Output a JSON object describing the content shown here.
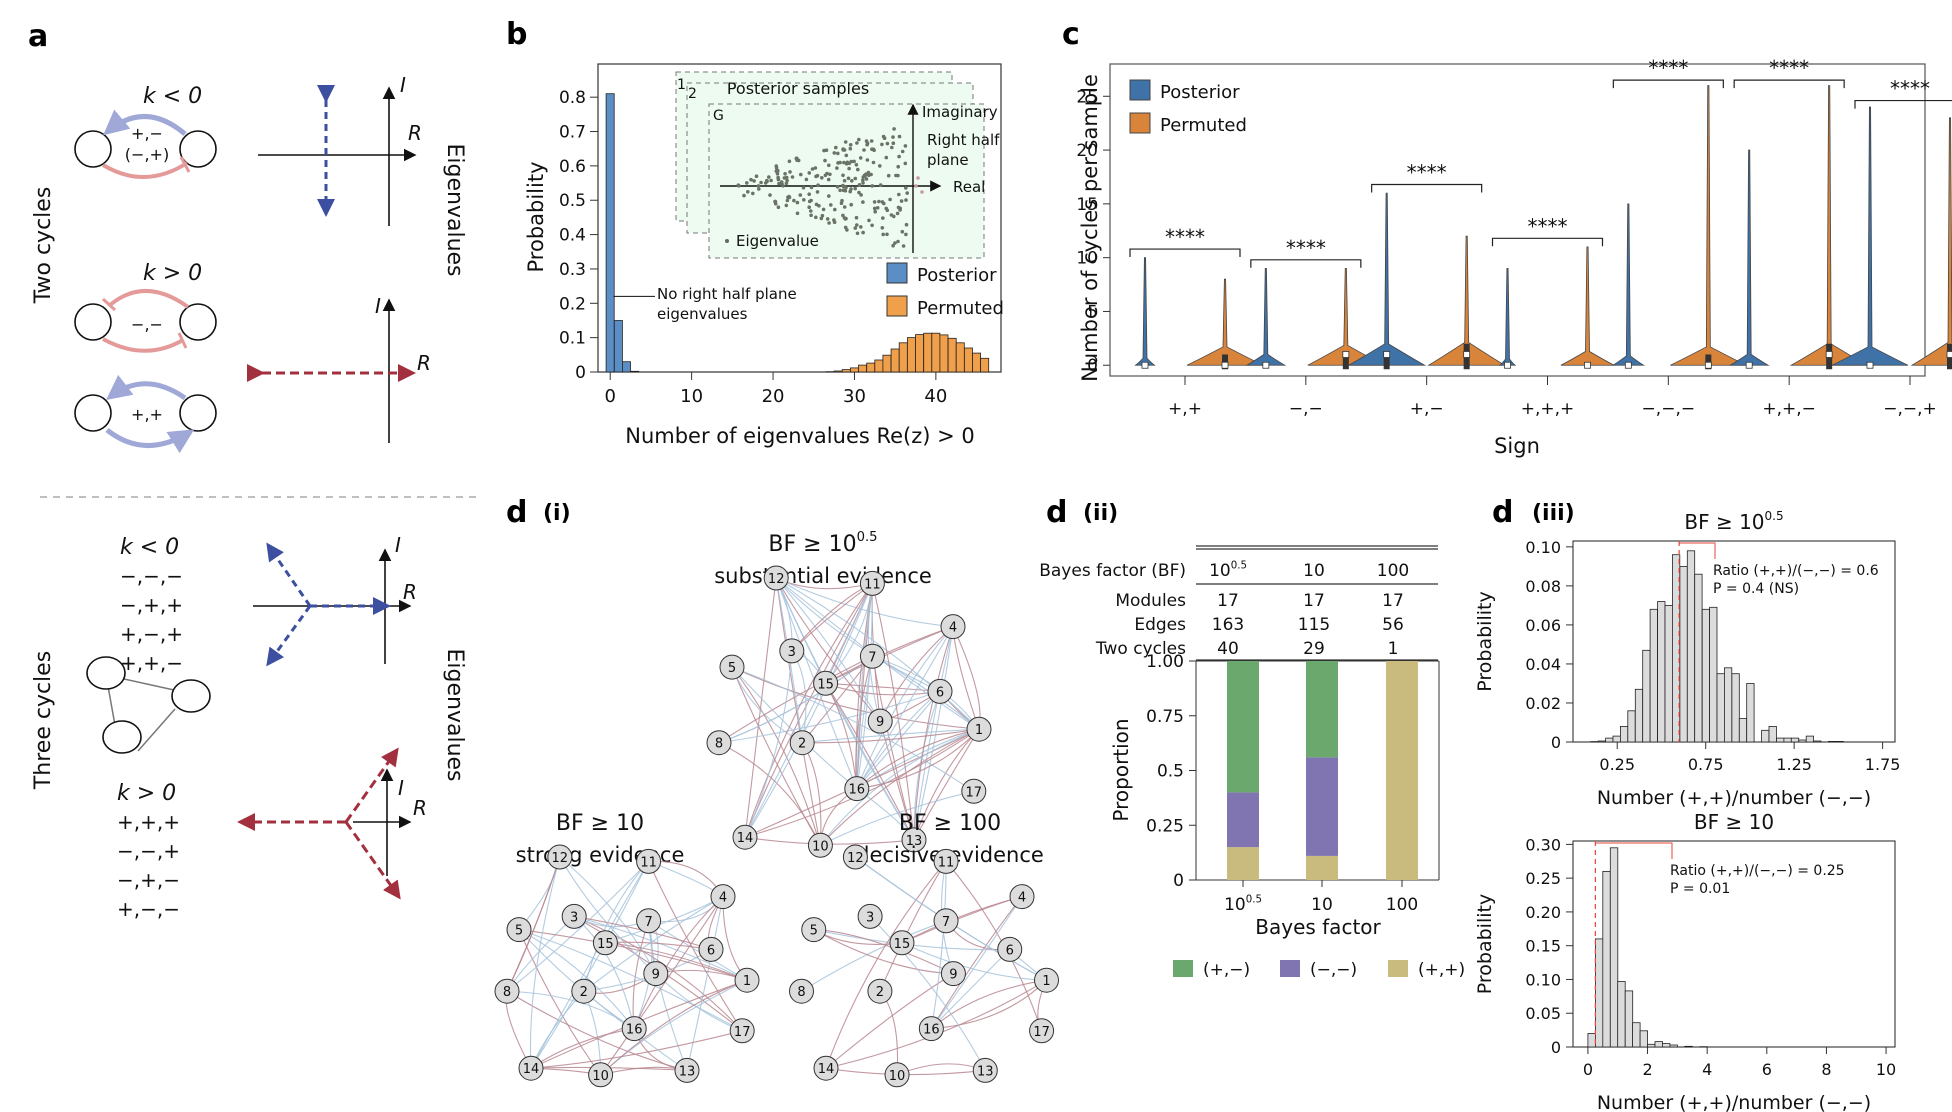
{
  "panels": {
    "a": {
      "letter": "a",
      "two_cycles_label": "Two cycles",
      "three_cycles_label": "Three cycles",
      "eigenvalues_label": "Eigenvalues",
      "axis_I": "I",
      "axis_R": "R",
      "two": {
        "k_neg": "k < 0",
        "k_neg_signs_1": "+,−",
        "k_neg_signs_2": "(−,+)",
        "k_pos": "k > 0",
        "k_pos_signs_1": "−,−",
        "k_pos_signs_2": "+,+"
      },
      "three": {
        "k_neg": "k < 0",
        "k_neg_signs": [
          "−,−,−",
          "−,+,+",
          "+,−,+",
          "+,+,−"
        ],
        "k_pos": "k > 0",
        "k_pos_signs": [
          "+,+,+",
          "−,−,+",
          "−,+,−",
          "+,−,−"
        ]
      }
    },
    "b": {
      "letter": "b"
    },
    "c": {
      "letter": "c"
    },
    "d": {
      "letter": "d",
      "sub_i": "(i)",
      "sub_ii": "(ii)",
      "sub_iii": "(iii)",
      "networks": [
        {
          "title": "BF ≥ 10",
          "sup": "0.5",
          "subtitle": "substantial evidence"
        },
        {
          "title": "BF ≥ 10",
          "sup": "",
          "subtitle": "strong evidence"
        },
        {
          "title": "BF ≥ 100",
          "sup": "",
          "subtitle": "decisive evidence"
        }
      ],
      "node_labels": [
        "1",
        "2",
        "3",
        "4",
        "5",
        "6",
        "7",
        "8",
        "9",
        "10",
        "11",
        "12",
        "13",
        "14",
        "15",
        "16",
        "17"
      ],
      "table": {
        "header_label": "Bayes factor (BF)",
        "columns": [
          "10",
          "10",
          "100"
        ],
        "column_sups": [
          "0.5",
          "",
          ""
        ],
        "rows": [
          {
            "label": "Modules",
            "values": [
              "17",
              "17",
              "17"
            ]
          },
          {
            "label": "Edges",
            "values": [
              "163",
              "115",
              "56"
            ]
          },
          {
            "label": "Two cycles",
            "values": [
              "40",
              "29",
              "1"
            ]
          }
        ]
      }
    }
  },
  "chart_data": [
    {
      "id": "b",
      "type": "bar",
      "xlabel": "Number of eigenvalues Re(z) > 0",
      "ylabel": "Probability",
      "xlim": [
        -1.5,
        48
      ],
      "ylim": [
        0,
        0.85
      ],
      "xticks": [
        0,
        10,
        20,
        30,
        40
      ],
      "yticks": [
        0,
        0.1,
        0.2,
        0.3,
        0.4,
        0.5,
        0.6,
        0.7,
        0.8
      ],
      "legend": {
        "position": "right",
        "entries": [
          "Posterior",
          "Permuted"
        ]
      },
      "colors": {
        "Posterior": "#5b8ec4",
        "Permuted": "#f0a04b"
      },
      "series": [
        {
          "name": "Posterior",
          "x": [
            0,
            1,
            2,
            3
          ],
          "values": [
            0.81,
            0.15,
            0.03,
            0.002
          ]
        },
        {
          "name": "Permuted",
          "x": [
            27,
            28,
            29,
            30,
            31,
            32,
            33,
            34,
            35,
            36,
            37,
            38,
            39,
            40,
            41,
            42,
            43,
            44,
            45,
            46
          ],
          "values": [
            0.001,
            0.003,
            0.007,
            0.012,
            0.02,
            0.026,
            0.035,
            0.049,
            0.067,
            0.085,
            0.1,
            0.109,
            0.113,
            0.113,
            0.108,
            0.098,
            0.085,
            0.07,
            0.055,
            0.04
          ]
        }
      ],
      "annotation": {
        "text_1": "No right half plane",
        "text_2": "eigenvalues"
      },
      "inset": {
        "sample_labels": [
          "1",
          "2",
          "G"
        ],
        "title": "Posterior samples",
        "imag_label": "Imaginary",
        "real_label": "Real",
        "rhp_label_1": "Right half",
        "rhp_label_2": "plane",
        "point_legend": "Eigenvalue"
      }
    },
    {
      "id": "c",
      "type": "violin",
      "xlabel": "Sign",
      "ylabel": "Number of cycles per sample",
      "ylim": [
        -1,
        28
      ],
      "yticks": [
        0,
        5,
        10,
        15,
        20,
        25
      ],
      "categories": [
        "+,+",
        "−,−",
        "+,−",
        "+,+,+",
        "−,−,−",
        "+,+,−",
        "−,−,+"
      ],
      "legend": {
        "position": "top-left",
        "entries": [
          "Posterior",
          "Permuted"
        ]
      },
      "colors": {
        "Posterior": "#3f72a6",
        "Permuted": "#d9843b"
      },
      "series": [
        {
          "name": "Posterior",
          "max": [
            10,
            9,
            16,
            9,
            15,
            20,
            24
          ],
          "median": [
            0,
            0,
            1,
            0,
            0,
            0,
            0
          ],
          "q3": [
            0,
            0,
            1,
            0,
            0,
            0,
            0
          ],
          "spread": [
            0.25,
            0.5,
            1.2,
            0.2,
            0.4,
            0.5,
            1.0
          ]
        },
        {
          "name": "Permuted",
          "max": [
            8,
            9,
            12,
            11,
            26,
            26,
            23
          ],
          "median": [
            0,
            1,
            1,
            0,
            0,
            1,
            1
          ],
          "q3": [
            1,
            1,
            2,
            0,
            1,
            2,
            2
          ],
          "spread": [
            1.0,
            1.1,
            1.3,
            0.7,
            1.0,
            1.2,
            1.3
          ]
        }
      ],
      "significance": [
        "****",
        "****",
        "****",
        "****",
        "****",
        "****",
        "****"
      ],
      "bracket_y": [
        10.8,
        9.8,
        16.8,
        11.8,
        26.5,
        26.5,
        24.6
      ]
    },
    {
      "id": "d-ii",
      "type": "bar",
      "stacked": true,
      "xlabel": "Bayes factor",
      "ylabel": "Proportion",
      "ylim": [
        0,
        1
      ],
      "yticks": [
        0,
        0.25,
        0.5,
        0.75,
        1.0
      ],
      "ytick_labels": [
        "0",
        "0.25",
        "0.5",
        "0.75",
        "1.00"
      ],
      "categories": [
        "10",
        "10",
        "100"
      ],
      "category_sups": [
        "0.5",
        "",
        ""
      ],
      "legend": {
        "position": "bottom",
        "entries": [
          "(+,−)",
          "(−,−)",
          "(+,+)"
        ]
      },
      "colors": {
        "(+,−)": "#6aa86e",
        "(−,−)": "#8075b0",
        "(+,+)": "#c9bb7e"
      },
      "series": [
        {
          "name": "(+,+)",
          "values": [
            0.15,
            0.11,
            1.0
          ]
        },
        {
          "name": "(−,−)",
          "values": [
            0.25,
            0.45,
            0.0
          ]
        },
        {
          "name": "(+,−)",
          "values": [
            0.6,
            0.44,
            0.0
          ]
        }
      ]
    },
    {
      "id": "d-iii-top",
      "type": "bar",
      "title": "BF ≥ 10",
      "title_sup": "0.5",
      "xlabel": "Number (+,+)/number (−,−)",
      "ylabel": "Probability",
      "xlim": [
        0.0,
        1.82
      ],
      "ylim": [
        0,
        0.103
      ],
      "xticks": [
        0.25,
        0.75,
        1.25,
        1.75
      ],
      "yticks": [
        0,
        0.02,
        0.04,
        0.06,
        0.08,
        0.1
      ],
      "ytick_labels": [
        "0",
        "0.02",
        "0.04",
        "0.06",
        "0.08",
        "0.10"
      ],
      "bin_width": 0.042,
      "bin_start": 0.1,
      "values": [
        0.0002,
        0.0005,
        0.002,
        0.003,
        0.008,
        0.016,
        0.027,
        0.047,
        0.068,
        0.072,
        0.07,
        0.096,
        0.09,
        0.098,
        0.086,
        0.068,
        0.069,
        0.035,
        0.038,
        0.035,
        0.012,
        0.03,
        0.0,
        0.006,
        0.008,
        0.002,
        0.002,
        0.002,
        0.001,
        0.003,
        0.0005,
        0.0,
        0.0003,
        0.0003,
        0.0
      ],
      "observed": 0.6,
      "annotation": {
        "line_1": "Ratio (+,+)/(−,−) = 0.6",
        "line_2": "P = 0.4 (NS)"
      }
    },
    {
      "id": "d-iii-bottom",
      "type": "bar",
      "title": "BF ≥ 10",
      "xlabel": "Number (+,+)/number (−,−)",
      "ylabel": "Probability",
      "xlim": [
        -0.5,
        10.3
      ],
      "ylim": [
        0,
        0.305
      ],
      "xticks": [
        0,
        2,
        4,
        6,
        8,
        10
      ],
      "yticks": [
        0,
        0.05,
        0.1,
        0.15,
        0.2,
        0.25,
        0.3
      ],
      "ytick_labels": [
        "0",
        "0.05",
        "0.10",
        "0.15",
        "0.20",
        "0.25",
        "0.30"
      ],
      "bin_width": 0.25,
      "bin_start": 0.0,
      "values": [
        0.02,
        0.16,
        0.26,
        0.295,
        0.097,
        0.083,
        0.036,
        0.024,
        0.004,
        0.008,
        0.005,
        0.003,
        0.0,
        0.001,
        0.0,
        0.0005
      ],
      "observed": 0.25,
      "annotation": {
        "line_1": "Ratio (+,+)/(−,−) = 0.25",
        "line_2": "P = 0.01"
      }
    }
  ]
}
